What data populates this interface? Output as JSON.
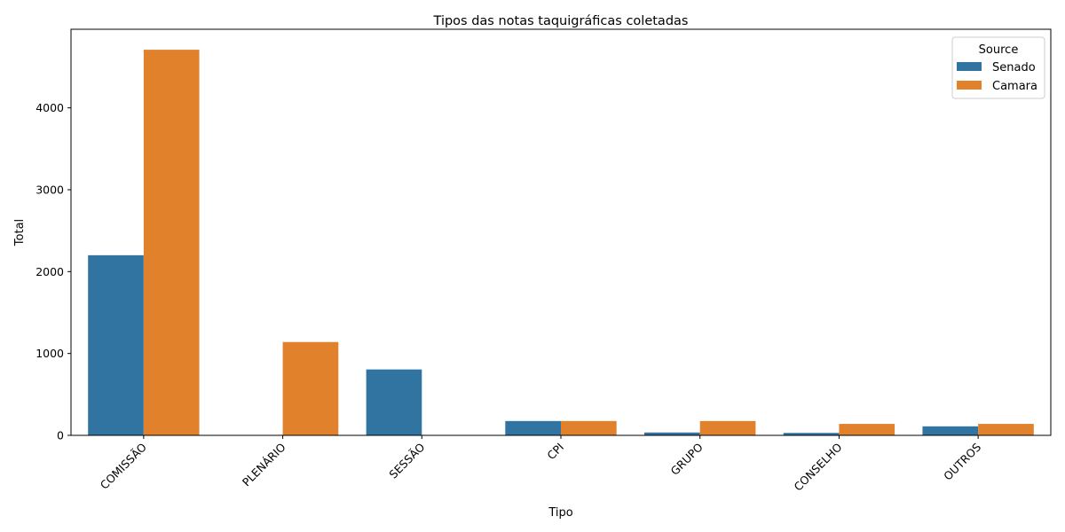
{
  "chart_data": {
    "type": "bar",
    "title": "Tipos das notas taquigráficas coletadas",
    "xlabel": "Tipo",
    "ylabel": "Total",
    "categories": [
      "COMISSÃO",
      "PLENÁRIO",
      "SESSÃO",
      "CPI",
      "GRUPO",
      "CONSELHO",
      "OUTROS"
    ],
    "series": [
      {
        "name": "Senado",
        "color": "#3274a1",
        "values": [
          2200,
          null,
          805,
          175,
          35,
          30,
          110
        ]
      },
      {
        "name": "Camara",
        "color": "#e1812c",
        "values": [
          4710,
          1140,
          null,
          175,
          175,
          140,
          140
        ]
      }
    ],
    "ylim": [
      0,
      4960
    ],
    "yticks": [
      0,
      1000,
      2000,
      3000,
      4000
    ],
    "legend": {
      "title": "Source",
      "position": "top-right"
    },
    "grid": false
  }
}
